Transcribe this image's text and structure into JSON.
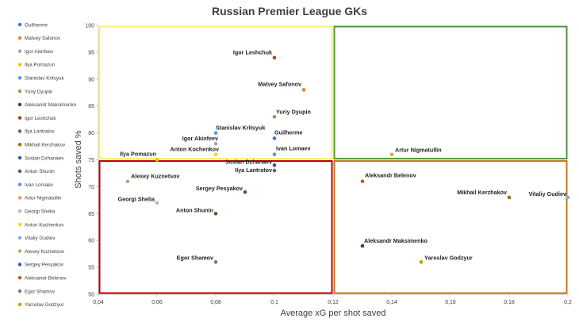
{
  "chart_data": {
    "type": "scatter",
    "title": "Russian Premier League GKs",
    "xlabel": "Average xG per shot saved",
    "ylabel": "Shots saved %",
    "xlim": [
      0.04,
      0.2
    ],
    "ylim": [
      50,
      100
    ],
    "x_ticks": [
      "0,04",
      "0,06",
      "0,08",
      "0,1",
      "0,12",
      "0,14",
      "0,16",
      "0,18",
      "0,2"
    ],
    "y_ticks": [
      "50",
      "55",
      "60",
      "65",
      "70",
      "75",
      "80",
      "85",
      "90",
      "95",
      "100"
    ],
    "grid": false,
    "legend_position": "left",
    "quadrants": [
      {
        "x": [
          0.04,
          0.12
        ],
        "y": [
          75,
          100
        ],
        "color": "#FFF176"
      },
      {
        "x": [
          0.12,
          0.2
        ],
        "y": [
          75,
          100
        ],
        "color": "#4E9A3A"
      },
      {
        "x": [
          0.04,
          0.12
        ],
        "y": [
          50,
          75
        ],
        "color": "#C00000"
      },
      {
        "x": [
          0.12,
          0.2
        ],
        "y": [
          50,
          75
        ],
        "color": "#C07A1E"
      }
    ],
    "series": [
      {
        "name": "Guilherme",
        "x": 0.1,
        "y": 79,
        "color": "#4472C4"
      },
      {
        "name": "Matvey Safonov",
        "x": 0.11,
        "y": 88,
        "color": "#ED7D31"
      },
      {
        "name": "Igor Akinfeev",
        "x": 0.08,
        "y": 78,
        "color": "#A5A5A5"
      },
      {
        "name": "Ilya Pomazun",
        "x": 0.06,
        "y": 75,
        "color": "#FFC000"
      },
      {
        "name": "Stanislav Kritsyuk",
        "x": 0.08,
        "y": 80,
        "color": "#5B9BD5"
      },
      {
        "name": "Yuriy Dyupin",
        "x": 0.1,
        "y": 83,
        "color": "#70AD47"
      },
      {
        "name": "Aleksandr Maksimenko",
        "x": 0.13,
        "y": 59,
        "color": "#264478"
      },
      {
        "name": "Igor Leshchuk",
        "x": 0.1,
        "y": 94,
        "color": "#9E480E"
      },
      {
        "name": "Ilya Lantratov",
        "x": 0.1,
        "y": 73,
        "color": "#636363"
      },
      {
        "name": "Mikhail Kerzhakov",
        "x": 0.18,
        "y": 68,
        "color": "#997300"
      },
      {
        "name": "Soslan Dzhanaev",
        "x": 0.1,
        "y": 74,
        "color": "#255E91"
      },
      {
        "name": "Anton Shunin",
        "x": 0.08,
        "y": 65,
        "color": "#43682B"
      },
      {
        "name": "Ivan Lomaev",
        "x": 0.1,
        "y": 76,
        "color": "#698ED0"
      },
      {
        "name": "Artur Nigmatullin",
        "x": 0.14,
        "y": 76,
        "color": "#F1975A"
      },
      {
        "name": "Georgi Shelia",
        "x": 0.06,
        "y": 67,
        "color": "#B7B7B7"
      },
      {
        "name": "Anton Kochenkov",
        "x": 0.08,
        "y": 76,
        "color": "#FFCD33"
      },
      {
        "name": "Vitaliy Gudiev",
        "x": 0.2,
        "y": 68,
        "color": "#7CAFDD"
      },
      {
        "name": "Alexey Kuznetsov",
        "x": 0.05,
        "y": 71,
        "color": "#8CC168"
      },
      {
        "name": "Sergey Pesyakov",
        "x": 0.09,
        "y": 69,
        "color": "#335AA1"
      },
      {
        "name": "Aleksandr Belenov",
        "x": 0.13,
        "y": 71,
        "color": "#C65911"
      },
      {
        "name": "Egor Shamov",
        "x": 0.08,
        "y": 56,
        "color": "#7A7A7A"
      },
      {
        "name": "Yaroslav Godzyur",
        "x": 0.15,
        "y": 56,
        "color": "#CC9A00"
      }
    ]
  }
}
